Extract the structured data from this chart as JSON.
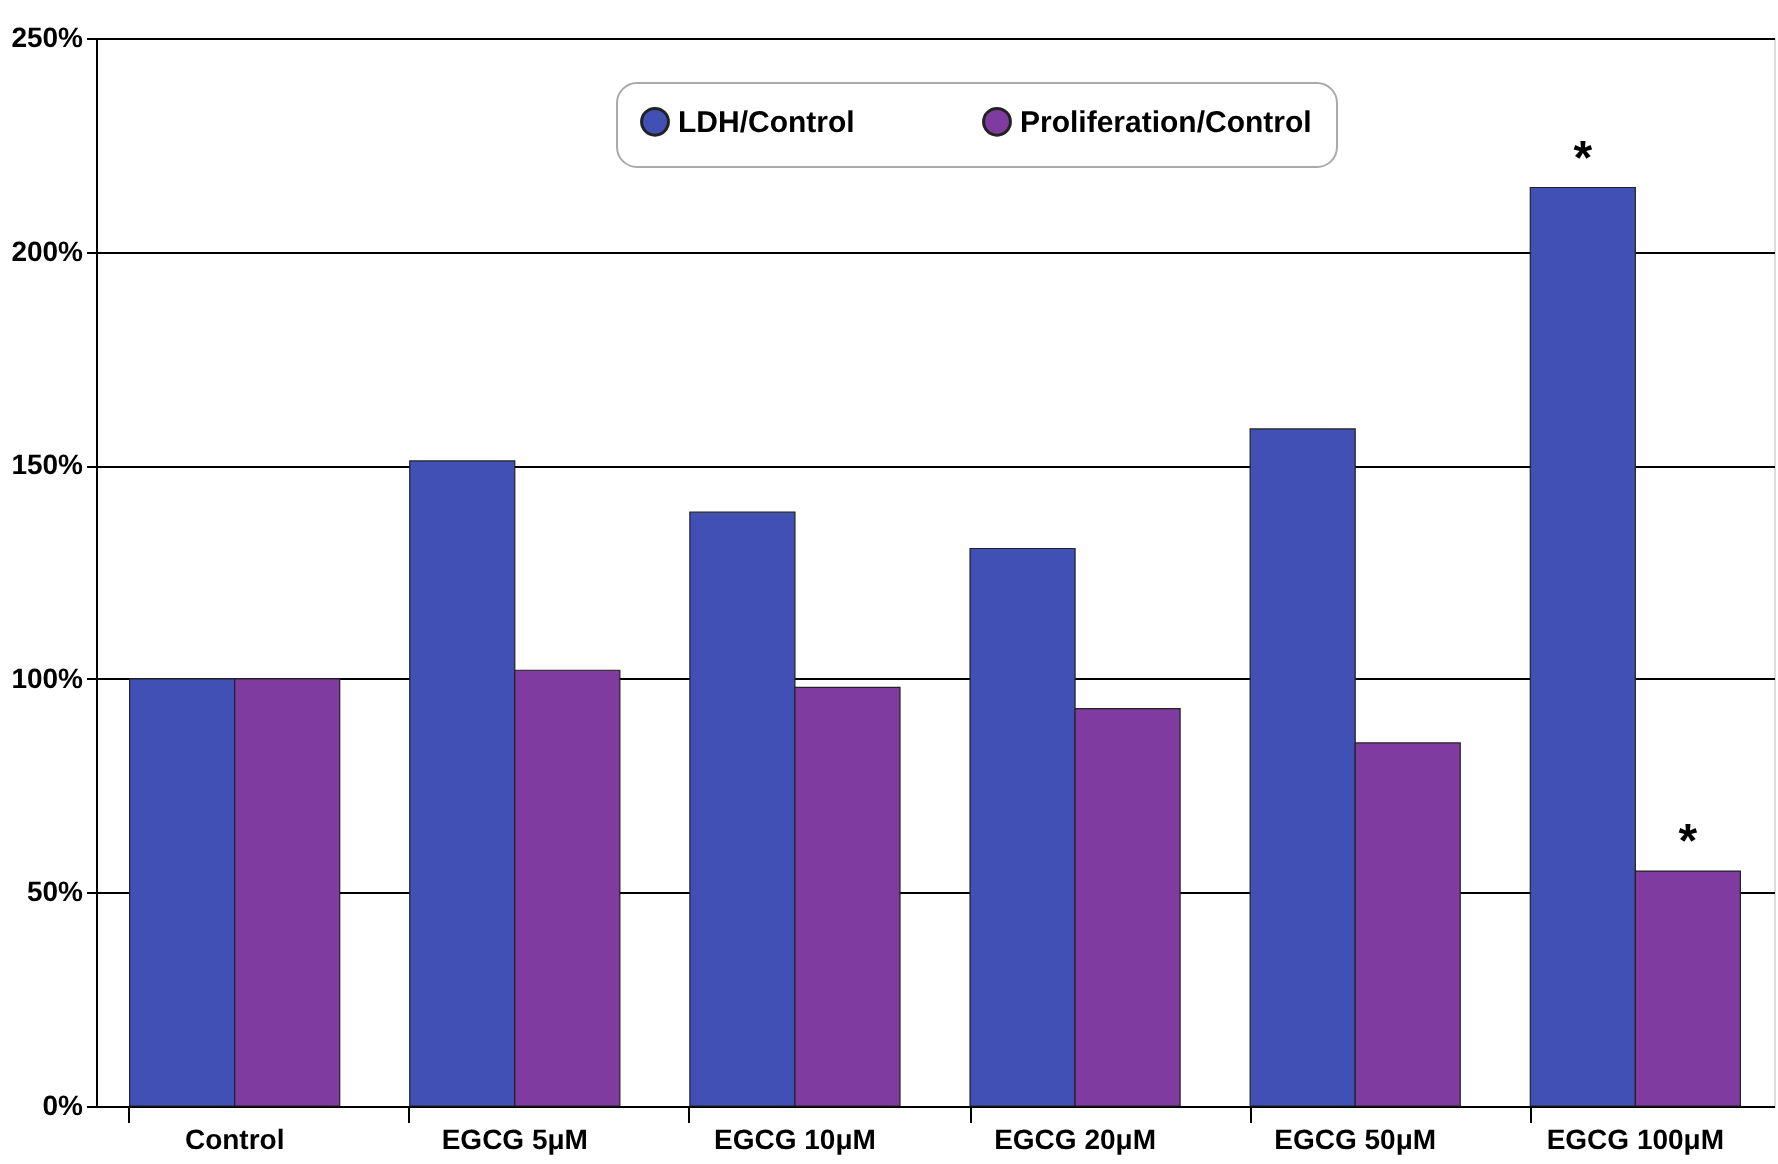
{
  "chart_data": {
    "type": "bar",
    "categories": [
      "Control",
      "EGCG 5μM",
      "EGCG 10μM",
      "EGCG 20μM",
      "EGCG 50μM",
      "EGCG 100μM"
    ],
    "series": [
      {
        "name": "LDH/Control",
        "color": "#4050b5",
        "values": [
          100,
          151,
          139,
          130.5,
          158.5,
          215
        ]
      },
      {
        "name": "Proliferation/Control",
        "color": "#7f3b9f",
        "values": [
          100,
          102,
          98,
          93,
          85,
          55
        ]
      }
    ],
    "ylim": [
      0,
      250
    ],
    "yticks": [
      {
        "value": 0,
        "label": "0%"
      },
      {
        "value": 50,
        "label": "50%"
      },
      {
        "value": 100,
        "label": "100%"
      },
      {
        "value": 150,
        "label": "150%"
      },
      {
        "value": 200,
        "label": "200%"
      },
      {
        "value": 250,
        "label": "250%"
      }
    ],
    "grid": "y",
    "legend": "top",
    "annotations": [
      {
        "text": "*",
        "x": "EGCG 100μM",
        "y": 215
      },
      {
        "text": "*",
        "x": "EGCG 100μM",
        "y": 55
      }
    ]
  }
}
